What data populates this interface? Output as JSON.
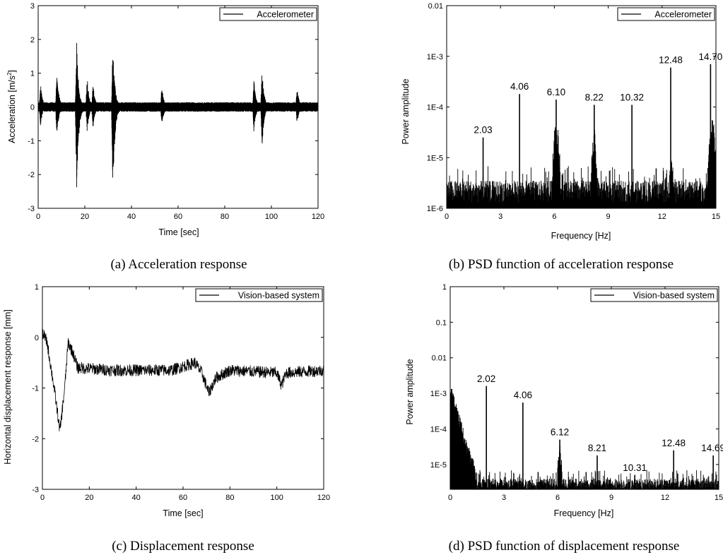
{
  "chart_data": [
    {
      "id": "a",
      "type": "line",
      "caption": "(a) Acceleration response",
      "xlabel": "Time [sec]",
      "ylabel_prefix": "Acceleration [m/s",
      "ylabel_sup": "2",
      "ylabel_suffix": "]",
      "xlim": [
        0,
        120
      ],
      "ylim": [
        -3,
        3
      ],
      "xticks": [
        "0",
        "20",
        "40",
        "60",
        "80",
        "100",
        "120"
      ],
      "yticks": [
        "-3",
        "-2",
        "-1",
        "0",
        "1",
        "2",
        "3"
      ],
      "legend": "Accelerometer",
      "legend_position": "top-right",
      "series": [
        {
          "name": "Accelerometer",
          "signal": "time",
          "baseline": 0,
          "noise": 0.1,
          "events": [
            {
              "t": 1,
              "up": 0.7,
              "down": -0.6
            },
            {
              "t": 8,
              "up": 1.05,
              "down": -0.95
            },
            {
              "t": 16.5,
              "up": 1.92,
              "down": -2.58
            },
            {
              "t": 21,
              "up": 0.92,
              "down": -0.8
            },
            {
              "t": 23.5,
              "up": 0.7,
              "down": -0.65
            },
            {
              "t": 32,
              "up": 1.92,
              "down": -2.78
            },
            {
              "t": 53,
              "up": 0.65,
              "down": -0.62
            },
            {
              "t": 92.5,
              "up": 0.85,
              "down": -0.75
            },
            {
              "t": 96,
              "up": 1.12,
              "down": -1.2
            },
            {
              "t": 111,
              "up": 0.6,
              "down": -0.55
            }
          ]
        }
      ]
    },
    {
      "id": "b",
      "type": "line",
      "scale_y": "log",
      "caption": "(b) PSD function of acceleration response",
      "xlabel": "Frequency [Hz]",
      "ylabel": "Power amplitude",
      "xlim": [
        0,
        15
      ],
      "ylim": [
        1e-06,
        0.01
      ],
      "xticks": [
        "0",
        "3",
        "6",
        "9",
        "12",
        "15"
      ],
      "yticks": [
        "1E-6",
        "1E-5",
        "1E-4",
        "1E-3",
        "0.01"
      ],
      "legend": "Accelerometer",
      "legend_position": "top-right",
      "peaks": [
        {
          "x": 2.03,
          "y": 2.5e-05,
          "label": "2.03"
        },
        {
          "x": 4.06,
          "y": 0.00018,
          "label": "4.06"
        },
        {
          "x": 6.1,
          "y": 0.00014,
          "label": "6.10"
        },
        {
          "x": 8.22,
          "y": 0.00011,
          "label": "8.22"
        },
        {
          "x": 10.32,
          "y": 0.00011,
          "label": "10.32"
        },
        {
          "x": 12.48,
          "y": 0.0006,
          "label": "12.48"
        },
        {
          "x": 14.7,
          "y": 0.0007,
          "label": "14.70"
        }
      ],
      "series": [
        {
          "name": "Accelerometer",
          "signal": "psd",
          "noise_floor": 1.3e-06,
          "noise_top": 3.5e-06,
          "clusters": [
            {
              "x": 6.1,
              "width": 0.25,
              "level": 6e-05
            },
            {
              "x": 8.22,
              "width": 0.2,
              "level": 4e-05
            },
            {
              "x": 12.5,
              "width": 0.2,
              "level": 1e-05
            },
            {
              "x": 14.8,
              "width": 0.25,
              "level": 7e-05
            }
          ]
        }
      ]
    },
    {
      "id": "c",
      "type": "line",
      "caption": "(c) Displacement response",
      "xlabel": "Time [sec]",
      "ylabel": "Horizontal displacement response [mm]",
      "xlim": [
        0,
        120
      ],
      "ylim": [
        -3,
        1
      ],
      "xticks": [
        "0",
        "20",
        "40",
        "60",
        "80",
        "100",
        "120"
      ],
      "yticks": [
        "-3",
        "-2",
        "-1",
        "0",
        "1"
      ],
      "legend": "Vision-based system",
      "legend_position": "top-right",
      "series": [
        {
          "name": "Vision-based system",
          "signal": "drift",
          "noise": 0.12,
          "path": [
            [
              0,
              0.1
            ],
            [
              2,
              -0.1
            ],
            [
              5,
              -1.0
            ],
            [
              7.5,
              -1.85
            ],
            [
              9.5,
              -1.0
            ],
            [
              11,
              -0.1
            ],
            [
              13,
              -0.3
            ],
            [
              15,
              -0.6
            ],
            [
              30,
              -0.65
            ],
            [
              55,
              -0.65
            ],
            [
              65,
              -0.5
            ],
            [
              68,
              -0.7
            ],
            [
              71,
              -1.1
            ],
            [
              74,
              -0.8
            ],
            [
              80,
              -0.65
            ],
            [
              100,
              -0.7
            ],
            [
              102,
              -0.95
            ],
            [
              104,
              -0.7
            ],
            [
              120,
              -0.65
            ]
          ]
        }
      ]
    },
    {
      "id": "d",
      "type": "line",
      "scale_y": "log",
      "caption": "(d) PSD function of displacement response",
      "xlabel": "Frequency [Hz]",
      "ylabel": "Power amplitude",
      "xlim": [
        0,
        15
      ],
      "ylim": [
        2e-06,
        1
      ],
      "xticks": [
        "0",
        "3",
        "6",
        "9",
        "12",
        "15"
      ],
      "yticks": [
        "1E-5",
        "1E-4",
        "1E-3",
        "0.01",
        "0.1",
        "1"
      ],
      "legend": "Vision-based system",
      "legend_position": "top-right",
      "peaks": [
        {
          "x": 2.02,
          "y": 0.0016,
          "label": "2.02"
        },
        {
          "x": 4.06,
          "y": 0.00055,
          "label": "4.06"
        },
        {
          "x": 6.12,
          "y": 5e-05,
          "label": "6.12"
        },
        {
          "x": 8.21,
          "y": 1.8e-05,
          "label": "8.21"
        },
        {
          "x": 10.31,
          "y": 5e-06,
          "label": "10.31"
        },
        {
          "x": 12.48,
          "y": 2.5e-05,
          "label": "12.48"
        },
        {
          "x": 14.69,
          "y": 1.8e-05,
          "label": "14.69"
        }
      ],
      "series": [
        {
          "name": "Vision-based system",
          "signal": "psd",
          "noise_floor": 2e-06,
          "noise_top": 4e-06,
          "low_freq_start": 0.002,
          "clusters": [
            {
              "x": 6.12,
              "width": 0.15,
              "level": 4.5e-05
            },
            {
              "x": 3.1,
              "width": 0.1,
              "level": 8e-06
            }
          ]
        }
      ]
    }
  ]
}
